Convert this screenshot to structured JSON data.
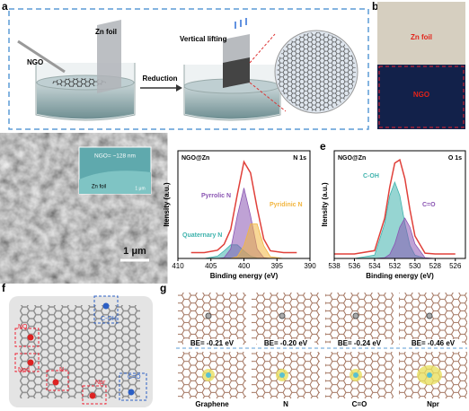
{
  "figure": {
    "labels": [
      "a",
      "b",
      "c",
      "d",
      "e",
      "f",
      "g"
    ],
    "a": {
      "zn_foil": "Zn foil",
      "ngo": "NGO",
      "reduction": "Reduction",
      "vertical_lifting": "Vertical lifting"
    },
    "b": {
      "zn_foil": "Zn foil",
      "ngo": "NGO"
    },
    "c": {
      "inset_ngo": "NGO= ~128 nm",
      "inset_zn": "Zn foil",
      "inset_scale": "1 μm",
      "scale_bar": "1 μm"
    },
    "f": {
      "sites": [
        "NQ",
        "Npd",
        "N",
        "Npr",
        "C=O",
        "C-OH"
      ]
    },
    "g": {
      "energies": [
        "BE= -0.21 eV",
        "BE= -0.20 eV",
        "BE= -0.24 eV",
        "BE= -0.46 eV"
      ],
      "models": [
        "Graphene",
        "N",
        "C=O",
        "Npr"
      ]
    }
  },
  "chart_data": [
    {
      "type": "line",
      "sample": "NGO@Zn",
      "title": "N 1s",
      "xlabel": "Binding energy (eV)",
      "ylabel": "Itensity (a.u.)",
      "x": [
        408,
        406,
        404,
        403,
        402,
        401,
        400,
        399,
        398,
        397,
        396,
        394,
        392
      ],
      "xlim": [
        410,
        390
      ],
      "xticks": [
        410,
        405,
        400,
        395,
        390
      ],
      "ylim": [
        0,
        1.1
      ],
      "series": [
        {
          "name": "Quaternary N",
          "color": "#3fb3ad",
          "fill": true,
          "values": [
            0,
            0,
            0.024,
            0.077,
            0.139,
            0.139,
            0.077,
            0.024,
            0.004,
            0,
            0,
            0,
            0
          ]
        },
        {
          "name": "Pyrrolic N",
          "color": "#8a55b3",
          "fill": true,
          "values": [
            0,
            0,
            0,
            0.008,
            0.097,
            0.437,
            0.72,
            0.437,
            0.097,
            0.008,
            0,
            0,
            0
          ]
        },
        {
          "name": "Pyridinic N",
          "color": "#f2b640",
          "fill": true,
          "values": [
            0,
            0,
            0,
            0,
            0.001,
            0.018,
            0.13,
            0.353,
            0.353,
            0.13,
            0.018,
            0,
            0
          ]
        },
        {
          "color": "#e0403a",
          "fill": false,
          "values": [
            0.06,
            0.06,
            0.084,
            0.145,
            0.297,
            0.654,
            0.987,
            0.874,
            0.514,
            0.198,
            0.078,
            0.06,
            0.06
          ]
        }
      ]
    },
    {
      "type": "line",
      "sample": "NGO@Zn",
      "title": "O 1s",
      "xlabel": "Binding energy (eV)",
      "ylabel": "Itensity (a.u.)",
      "x": [
        538,
        536,
        534,
        533,
        532.5,
        532,
        531.5,
        531,
        530.5,
        530,
        529,
        528,
        526
      ],
      "xlim": [
        538,
        525
      ],
      "xticks": [
        538,
        536,
        534,
        532,
        530,
        528,
        526
      ],
      "ylim": [
        0,
        1.2
      ],
      "series": [
        {
          "name": "C-OH",
          "color": "#3fb3ad",
          "fill": true,
          "values": [
            0,
            0,
            0.037,
            0.39,
            0.7,
            0.85,
            0.7,
            0.39,
            0.146,
            0.037,
            0.001,
            0,
            0
          ]
        },
        {
          "name": "C=O",
          "color": "#8a55b3",
          "fill": true,
          "values": [
            0,
            0,
            0,
            0.008,
            0.045,
            0.163,
            0.349,
            0.45,
            0.349,
            0.163,
            0.008,
            0,
            0
          ]
        },
        {
          "color": "#e0403a",
          "fill": false,
          "values": [
            0.05,
            0.05,
            0.087,
            0.448,
            0.795,
            1.063,
            1.099,
            0.89,
            0.545,
            0.25,
            0.059,
            0.05,
            0.05
          ]
        }
      ]
    }
  ]
}
